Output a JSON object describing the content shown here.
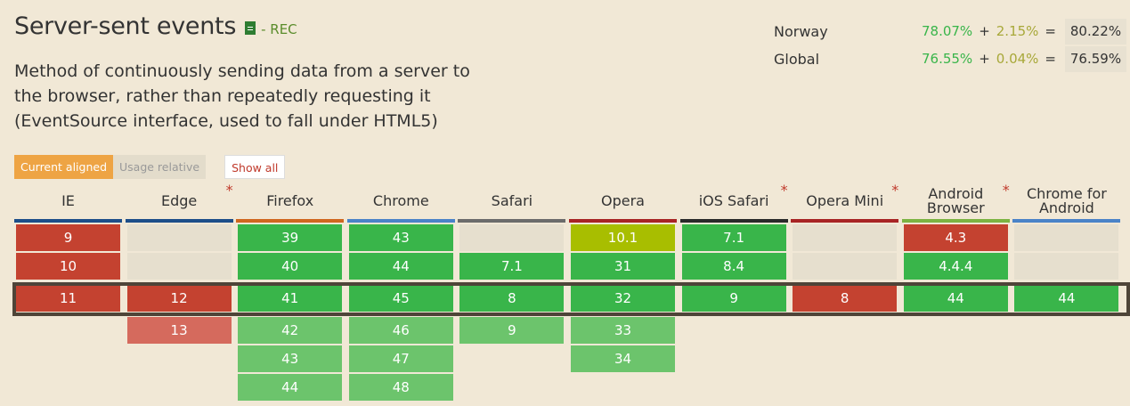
{
  "feature": {
    "title": "Server-sent events",
    "status": "- REC",
    "description": "Method of continuously sending data from a server to the browser, rather than repeatedly requesting it (EventSource interface, used to fall under HTML5)"
  },
  "usage": [
    {
      "region": "Norway",
      "full": "78.07%",
      "partial": "2.15%",
      "total": "80.22%"
    },
    {
      "region": "Global",
      "full": "76.55%",
      "partial": "0.04%",
      "total": "76.59%"
    }
  ],
  "usage_ops": {
    "plus": "+",
    "equals": "="
  },
  "toggles": {
    "current": "Current aligned",
    "relative": "Usage relative",
    "show_all": "Show all"
  },
  "browsers": [
    {
      "name": "IE",
      "star": false,
      "color": "#1d4e89",
      "past": [
        {
          "v": "9",
          "s": "n"
        },
        {
          "v": "10",
          "s": "n"
        }
      ],
      "current": {
        "v": "11",
        "s": "n"
      },
      "future": []
    },
    {
      "name": "Edge",
      "star": true,
      "color": "#1d4e89",
      "past": [
        {
          "v": "",
          "s": "u"
        },
        {
          "v": "",
          "s": "u"
        }
      ],
      "current": {
        "v": "12",
        "s": "n"
      },
      "future": [
        {
          "v": "13",
          "s": "fn"
        }
      ]
    },
    {
      "name": "Firefox",
      "star": false,
      "color": "#d0671f",
      "past": [
        {
          "v": "39",
          "s": "y"
        },
        {
          "v": "40",
          "s": "y"
        }
      ],
      "current": {
        "v": "41",
        "s": "y"
      },
      "future": [
        {
          "v": "42",
          "s": "fy"
        },
        {
          "v": "43",
          "s": "fy"
        },
        {
          "v": "44",
          "s": "fy"
        }
      ]
    },
    {
      "name": "Chrome",
      "star": false,
      "color": "#4a83c8",
      "past": [
        {
          "v": "43",
          "s": "y"
        },
        {
          "v": "44",
          "s": "y"
        }
      ],
      "current": {
        "v": "45",
        "s": "y"
      },
      "future": [
        {
          "v": "46",
          "s": "fy"
        },
        {
          "v": "47",
          "s": "fy"
        },
        {
          "v": "48",
          "s": "fy"
        }
      ]
    },
    {
      "name": "Safari",
      "star": false,
      "color": "#6b6b6b",
      "past": [
        {
          "v": "",
          "s": "u"
        },
        {
          "v": "7.1",
          "s": "y"
        }
      ],
      "current": {
        "v": "8",
        "s": "y"
      },
      "future": [
        {
          "v": "9",
          "s": "fy"
        }
      ]
    },
    {
      "name": "Opera",
      "star": false,
      "color": "#a82424",
      "past": [
        {
          "v": "10.1",
          "s": "a"
        },
        {
          "v": "31",
          "s": "y"
        }
      ],
      "current": {
        "v": "32",
        "s": "y"
      },
      "future": [
        {
          "v": "33",
          "s": "fy"
        },
        {
          "v": "34",
          "s": "fy"
        }
      ]
    },
    {
      "name": "iOS Safari",
      "star": true,
      "color": "#2a2a2a",
      "past": [
        {
          "v": "7.1",
          "s": "y"
        },
        {
          "v": "8.4",
          "s": "y"
        }
      ],
      "current": {
        "v": "9",
        "s": "y"
      },
      "future": []
    },
    {
      "name": "Opera Mini",
      "star": true,
      "color": "#a82424",
      "past": [
        {
          "v": "",
          "s": "u"
        },
        {
          "v": "",
          "s": "u"
        }
      ],
      "current": {
        "v": "8",
        "s": "n"
      },
      "future": []
    },
    {
      "name": "Android Browser",
      "star": true,
      "color": "#7cb342",
      "past": [
        {
          "v": "4.3",
          "s": "n"
        },
        {
          "v": "4.4.4",
          "s": "y"
        }
      ],
      "current": {
        "v": "44",
        "s": "y"
      },
      "future": []
    },
    {
      "name": "Chrome for Android",
      "star": false,
      "color": "#4a83c8",
      "past": [
        {
          "v": "",
          "s": "u"
        },
        {
          "v": "",
          "s": "u"
        }
      ],
      "current": {
        "v": "44",
        "s": "y"
      },
      "future": []
    }
  ]
}
